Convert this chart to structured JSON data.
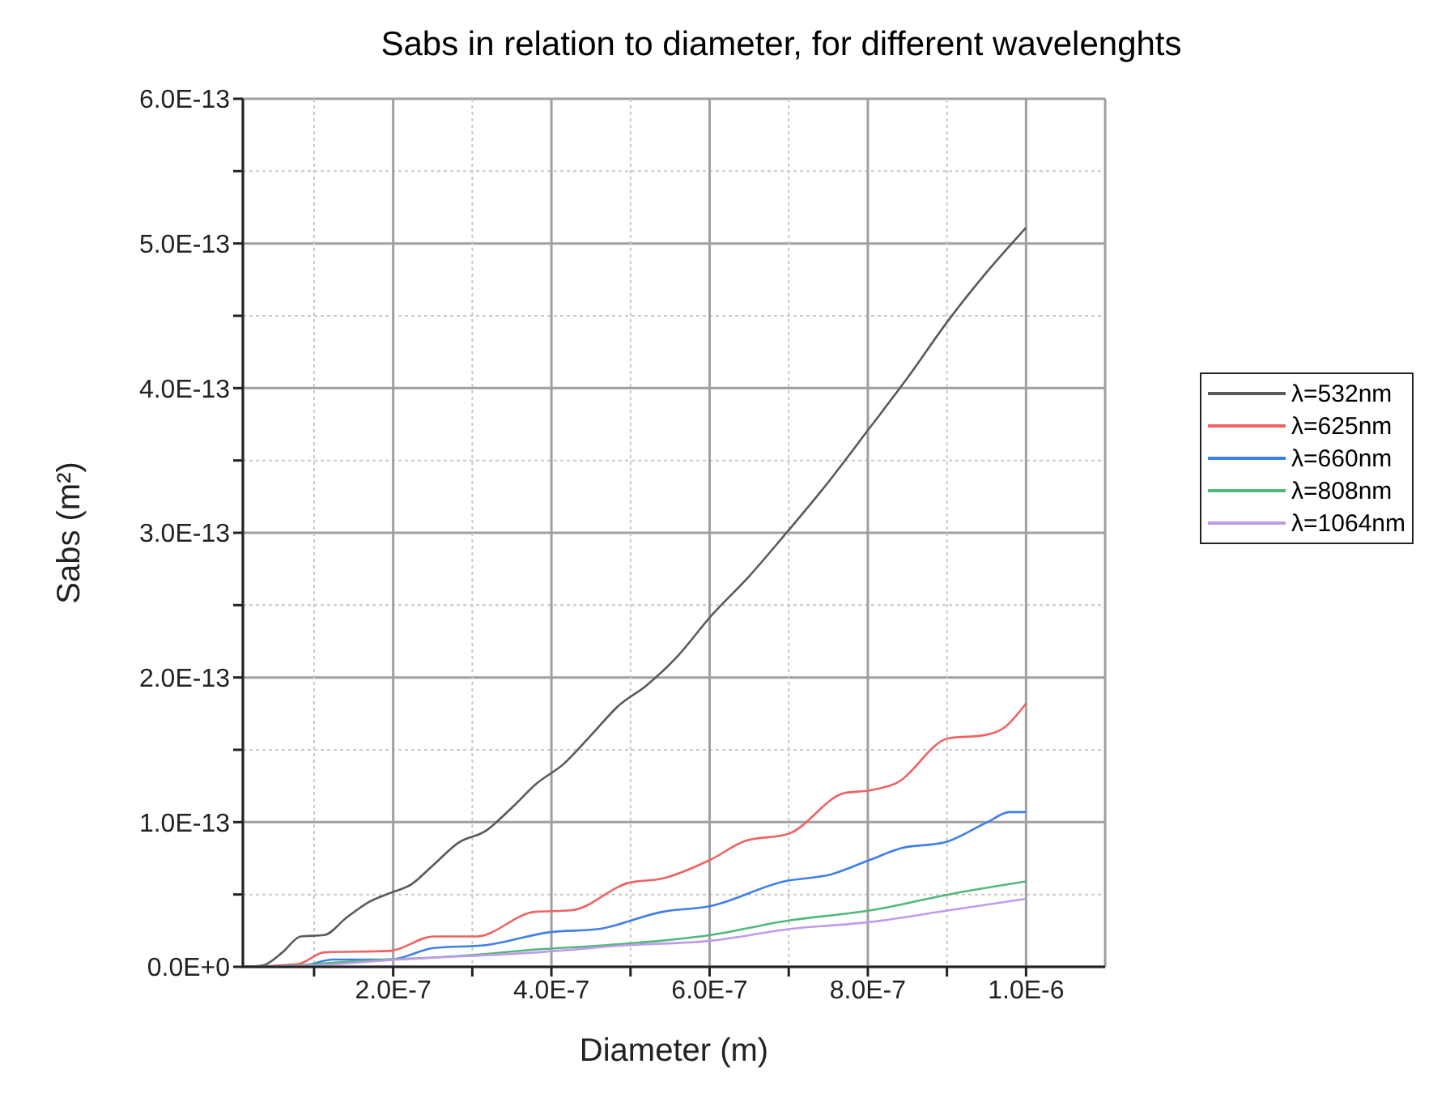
{
  "chart_data": {
    "type": "line",
    "title": "Sabs in relation to diameter, for different wavelenghts",
    "xlabel": "Diameter (m)",
    "ylabel": "Sabs (m²)",
    "xlim": [
      1e-08,
      1.1e-06
    ],
    "xticks": [
      {
        "value": 1e-07,
        "label": null
      },
      {
        "value": 2e-07,
        "label": "2.0E-7"
      },
      {
        "value": 3e-07,
        "label": null
      },
      {
        "value": 4e-07,
        "label": "4.0E-7"
      },
      {
        "value": 5e-07,
        "label": null
      },
      {
        "value": 6e-07,
        "label": "6.0E-7"
      },
      {
        "value": 7e-07,
        "label": null
      },
      {
        "value": 8e-07,
        "label": "8.0E-7"
      },
      {
        "value": 9e-07,
        "label": null
      },
      {
        "value": 1e-06,
        "label": "1.0E-6"
      }
    ],
    "ylim": [
      0,
      6e-13
    ],
    "yticks": [
      {
        "value": 0,
        "label": "0.0E+0"
      },
      {
        "value": 5e-14,
        "label": null
      },
      {
        "value": 1e-13,
        "label": "1.0E-13"
      },
      {
        "value": 1.5e-13,
        "label": null
      },
      {
        "value": 2e-13,
        "label": "2.0E-13"
      },
      {
        "value": 2.5e-13,
        "label": null
      },
      {
        "value": 3e-13,
        "label": "3.0E-13"
      },
      {
        "value": 3.5e-13,
        "label": null
      },
      {
        "value": 4e-13,
        "label": "4.0E-13"
      },
      {
        "value": 4.5e-13,
        "label": null
      },
      {
        "value": 5e-13,
        "label": "5.0E-13"
      },
      {
        "value": 5.5e-13,
        "label": null
      },
      {
        "value": 6e-13,
        "label": "6.0E-13"
      }
    ],
    "grid": true,
    "legend": "right",
    "marker": "none",
    "line_style": "solid",
    "series": [
      {
        "name": "λ=532nm",
        "color": "#5a5a5a",
        "x": [
          1e-08,
          3.5e-08,
          6e-08,
          8.3e-08,
          1.13e-07,
          1.41e-07,
          1.7e-07,
          1.96e-07,
          2.23e-07,
          2.5e-07,
          2.83e-07,
          3.17e-07,
          3.5e-07,
          3.82e-07,
          4.15e-07,
          4.5e-07,
          4.86e-07,
          5.19e-07,
          5.6e-07,
          6.01e-07,
          6.5e-07,
          6.94e-07,
          7.5e-07,
          8.03e-07,
          8.5e-07,
          9.02e-07,
          9.5e-07,
          1e-06
        ],
        "values": [
          0,
          1e-15,
          1e-14,
          2.1e-14,
          2.2e-14,
          3.4e-14,
          4.5e-14,
          5.1e-14,
          5.7e-14,
          7e-14,
          8.6e-14,
          9.4e-14,
          1.1e-13,
          1.27e-13,
          1.4e-13,
          1.6e-13,
          1.81e-13,
          1.94e-13,
          2.15e-13,
          2.42e-13,
          2.7e-13,
          2.98e-13,
          3.35e-13,
          3.73e-13,
          4.07e-13,
          4.47e-13,
          4.8e-13,
          5.11e-13
        ]
      },
      {
        "name": "λ=625nm",
        "color": "#f06262",
        "x": [
          1e-08,
          8e-08,
          1.13e-07,
          1.96e-07,
          2.51e-07,
          3.05e-07,
          3.79e-07,
          4.25e-07,
          4.97e-07,
          5.4e-07,
          6.01e-07,
          6.45e-07,
          7e-07,
          7.7e-07,
          8.03e-07,
          8.36e-07,
          9.02e-07,
          9.46e-07,
          9.74e-07,
          1e-06
        ],
        "values": [
          0,
          2e-15,
          1e-14,
          1.1e-14,
          2.1e-14,
          2.1e-14,
          3.8e-14,
          3.9e-14,
          5.8e-14,
          6.1e-14,
          7.4e-14,
          8.7e-14,
          9.2e-14,
          1.2e-13,
          1.22e-13,
          1.27e-13,
          1.58e-13,
          1.6e-13,
          1.66e-13,
          1.82e-13
        ]
      },
      {
        "name": "λ=660nm",
        "color": "#3f7fe8",
        "x": [
          1e-08,
          8.6e-08,
          1.24e-07,
          1.96e-07,
          2.51e-07,
          3.17e-07,
          3.99e-07,
          4.58e-07,
          5.4e-07,
          6.01e-07,
          6.94e-07,
          7.54e-07,
          8.03e-07,
          8.42e-07,
          8.97e-07,
          9.51e-07,
          9.79e-07,
          1e-06
        ],
        "values": [
          0,
          1e-15,
          5e-15,
          5e-15,
          1.3e-14,
          1.5e-14,
          2.4e-14,
          2.6e-14,
          3.8e-14,
          4.2e-14,
          5.9e-14,
          6.4e-14,
          7.4e-14,
          8.2e-14,
          8.6e-14,
          1e-13,
          1.07e-13,
          1.07e-13
        ]
      },
      {
        "name": "λ=808nm",
        "color": "#4fb87a",
        "x": [
          1e-08,
          8e-08,
          1.29e-07,
          2.94e-07,
          3.82e-07,
          4.7e-07,
          6.01e-07,
          7e-07,
          8.03e-07,
          9.02e-07,
          1e-06
        ],
        "values": [
          0,
          1e-15,
          3e-15,
          8e-15,
          1.2e-14,
          1.5e-14,
          2.2e-14,
          3.2e-14,
          3.9e-14,
          5e-14,
          5.9e-14
        ]
      },
      {
        "name": "λ=1064nm",
        "color": "#c29aea",
        "x": [
          1e-08,
          1e-07,
          2.07e-07,
          3.82e-07,
          4.97e-07,
          6.01e-07,
          7e-07,
          8.03e-07,
          9.02e-07,
          1e-06
        ],
        "values": [
          0,
          1e-15,
          5e-15,
          1e-14,
          1.5e-14,
          1.8e-14,
          2.6e-14,
          3.1e-14,
          3.9e-14,
          4.7e-14
        ]
      }
    ]
  }
}
